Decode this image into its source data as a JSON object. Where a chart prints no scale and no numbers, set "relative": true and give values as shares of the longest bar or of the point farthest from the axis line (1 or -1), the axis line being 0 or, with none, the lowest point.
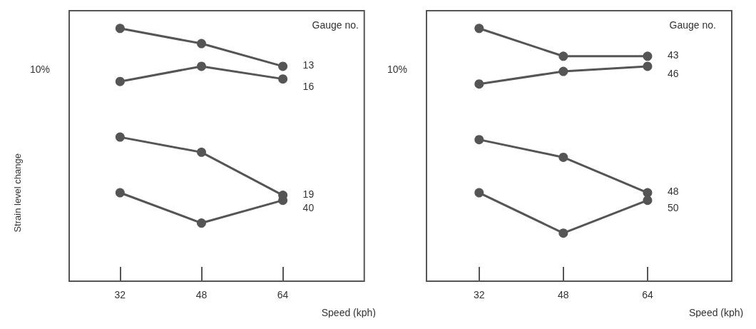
{
  "chart_data": [
    {
      "type": "line",
      "ylabel": "Strain level change",
      "xlabel": "Speed (kph)",
      "legend_title": "Gauge no.",
      "relative": true,
      "x": [
        32,
        48,
        64
      ],
      "xlim": [
        22,
        80
      ],
      "xticks": [
        32,
        48,
        64
      ],
      "marker": "circle",
      "grid": false,
      "legend": false,
      "annotations": [
        "10%"
      ],
      "series": [
        {
          "name": "13",
          "color": "#555555",
          "values": [
            1,
            0.94,
            0.85
          ]
        },
        {
          "name": "16",
          "color": "#555555",
          "values": [
            0.79,
            0.85,
            0.8
          ]
        },
        {
          "name": "19",
          "color": "#555555",
          "values": [
            0.57,
            0.51,
            0.34
          ]
        },
        {
          "name": "40",
          "color": "#555555",
          "values": [
            0.35,
            0.23,
            0.32
          ]
        }
      ]
    },
    {
      "type": "line",
      "xlabel": "Speed (kph)",
      "legend_title": "Gauge no.",
      "relative": true,
      "x": [
        32,
        48,
        64
      ],
      "xlim": [
        22,
        80
      ],
      "xticks": [
        32,
        48,
        64
      ],
      "marker": "circle",
      "grid": false,
      "legend": false,
      "annotations": [
        "10%"
      ],
      "series": [
        {
          "name": "43",
          "color": "#555555",
          "values": [
            1,
            0.89,
            0.89
          ]
        },
        {
          "name": "46",
          "color": "#555555",
          "values": [
            0.78,
            0.83,
            0.85
          ]
        },
        {
          "name": "48",
          "color": "#555555",
          "values": [
            0.56,
            0.49,
            0.35
          ]
        },
        {
          "name": "50",
          "color": "#555555",
          "values": [
            0.35,
            0.19,
            0.32
          ]
        }
      ]
    }
  ]
}
